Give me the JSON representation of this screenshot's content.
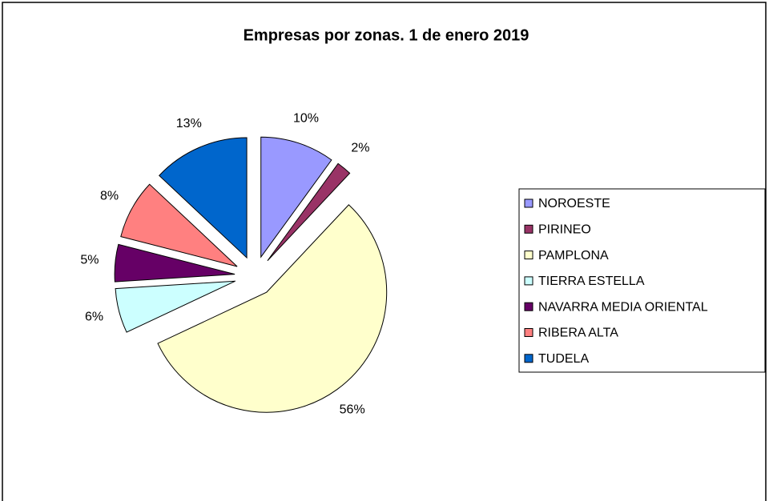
{
  "chart_data": {
    "type": "pie",
    "title": "Empresas por zonas. 1 de enero 2019",
    "categories": [
      "NOROESTE",
      "PIRINEO",
      "PAMPLONA",
      "TIERRA ESTELLA",
      "NAVARRA MEDIA ORIENTAL",
      "RIBERA ALTA",
      "TUDELA"
    ],
    "values": [
      10,
      2,
      56,
      6,
      5,
      8,
      13
    ],
    "value_labels": [
      "10%",
      "2%",
      "56%",
      "6%",
      "5%",
      "8%",
      "13%"
    ],
    "colors": [
      "#9999ff",
      "#993366",
      "#ffffcc",
      "#ccffff",
      "#660066",
      "#ff8080",
      "#0066cc"
    ],
    "legend": "right"
  }
}
